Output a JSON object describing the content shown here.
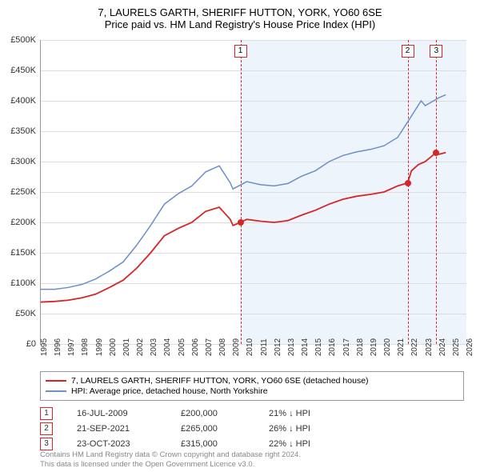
{
  "title": {
    "line1": "7, LAURELS GARTH, SHERIFF HUTTON, YORK, YO60 6SE",
    "line2": "Price paid vs. HM Land Registry's House Price Index (HPI)"
  },
  "chart": {
    "type": "line",
    "x_min": 1995,
    "x_max": 2026,
    "y_min": 0,
    "y_max": 500000,
    "y_ticks": [
      0,
      50000,
      100000,
      150000,
      200000,
      250000,
      300000,
      350000,
      400000,
      450000,
      500000
    ],
    "y_tick_labels": [
      "£0",
      "£50K",
      "£100K",
      "£150K",
      "£200K",
      "£250K",
      "£300K",
      "£350K",
      "£400K",
      "£450K",
      "£500K"
    ],
    "x_ticks": [
      1995,
      1996,
      1997,
      1998,
      1999,
      2000,
      2001,
      2002,
      2003,
      2004,
      2005,
      2006,
      2007,
      2008,
      2009,
      2010,
      2011,
      2012,
      2013,
      2014,
      2015,
      2016,
      2017,
      2018,
      2019,
      2020,
      2021,
      2022,
      2023,
      2024,
      2025,
      2026
    ],
    "background_color": "#ffffff",
    "grid_color": "#dddddd",
    "shaded_region": {
      "x_start": 2009.54,
      "x_end": 2026,
      "color": "#eef4fb"
    },
    "series": [
      {
        "name": "property",
        "color": "#d62728",
        "width": 1.8,
        "points": [
          [
            1995,
            69000
          ],
          [
            1996,
            70000
          ],
          [
            1997,
            72000
          ],
          [
            1998,
            76000
          ],
          [
            1999,
            82000
          ],
          [
            2000,
            93000
          ],
          [
            2001,
            105000
          ],
          [
            2002,
            125000
          ],
          [
            2003,
            150000
          ],
          [
            2004,
            178000
          ],
          [
            2005,
            190000
          ],
          [
            2006,
            200000
          ],
          [
            2007,
            218000
          ],
          [
            2008,
            225000
          ],
          [
            2008.8,
            205000
          ],
          [
            2009,
            195000
          ],
          [
            2009.54,
            200000
          ],
          [
            2010,
            205000
          ],
          [
            2011,
            202000
          ],
          [
            2012,
            200000
          ],
          [
            2013,
            203000
          ],
          [
            2014,
            212000
          ],
          [
            2015,
            220000
          ],
          [
            2016,
            230000
          ],
          [
            2017,
            238000
          ],
          [
            2018,
            243000
          ],
          [
            2019,
            246000
          ],
          [
            2020,
            250000
          ],
          [
            2021,
            260000
          ],
          [
            2021.72,
            265000
          ],
          [
            2022,
            285000
          ],
          [
            2022.5,
            295000
          ],
          [
            2023,
            300000
          ],
          [
            2023.81,
            315000
          ],
          [
            2024,
            312000
          ],
          [
            2024.5,
            315000
          ]
        ]
      },
      {
        "name": "hpi",
        "color": "#6b8fc7",
        "width": 1.5,
        "points": [
          [
            1995,
            90000
          ],
          [
            1996,
            90000
          ],
          [
            1997,
            93000
          ],
          [
            1998,
            98000
          ],
          [
            1999,
            107000
          ],
          [
            2000,
            120000
          ],
          [
            2001,
            135000
          ],
          [
            2002,
            163000
          ],
          [
            2003,
            195000
          ],
          [
            2004,
            230000
          ],
          [
            2005,
            247000
          ],
          [
            2006,
            260000
          ],
          [
            2007,
            283000
          ],
          [
            2008,
            293000
          ],
          [
            2008.8,
            265000
          ],
          [
            2009,
            255000
          ],
          [
            2010,
            267000
          ],
          [
            2011,
            262000
          ],
          [
            2012,
            260000
          ],
          [
            2013,
            264000
          ],
          [
            2014,
            276000
          ],
          [
            2015,
            285000
          ],
          [
            2016,
            300000
          ],
          [
            2017,
            310000
          ],
          [
            2018,
            316000
          ],
          [
            2019,
            320000
          ],
          [
            2020,
            326000
          ],
          [
            2021,
            340000
          ],
          [
            2022,
            375000
          ],
          [
            2022.7,
            400000
          ],
          [
            2023,
            392000
          ],
          [
            2024,
            405000
          ],
          [
            2024.5,
            410000
          ]
        ]
      }
    ],
    "event_lines": [
      {
        "id": "1",
        "x": 2009.54
      },
      {
        "id": "2",
        "x": 2021.72
      },
      {
        "id": "3",
        "x": 2023.81
      }
    ],
    "data_markers": [
      {
        "x": 2009.54,
        "y": 200000,
        "color": "#d62728"
      },
      {
        "x": 2021.72,
        "y": 265000,
        "color": "#d62728"
      },
      {
        "x": 2023.81,
        "y": 315000,
        "color": "#d62728"
      }
    ]
  },
  "legend": {
    "items": [
      {
        "color": "#d62728",
        "label": "7, LAURELS GARTH, SHERIFF HUTTON, YORK, YO60 6SE (detached house)"
      },
      {
        "color": "#6b8fc7",
        "label": "HPI: Average price, detached house, North Yorkshire"
      }
    ]
  },
  "events_table": {
    "rows": [
      {
        "id": "1",
        "date": "16-JUL-2009",
        "price": "£200,000",
        "delta": "21% ↓ HPI"
      },
      {
        "id": "2",
        "date": "21-SEP-2021",
        "price": "£265,000",
        "delta": "26% ↓ HPI"
      },
      {
        "id": "3",
        "date": "23-OCT-2023",
        "price": "£315,000",
        "delta": "22% ↓ HPI"
      }
    ]
  },
  "footer": {
    "line1": "Contains HM Land Registry data © Crown copyright and database right 2024.",
    "line2": "This data is licensed under the Open Government Licence v3.0."
  }
}
